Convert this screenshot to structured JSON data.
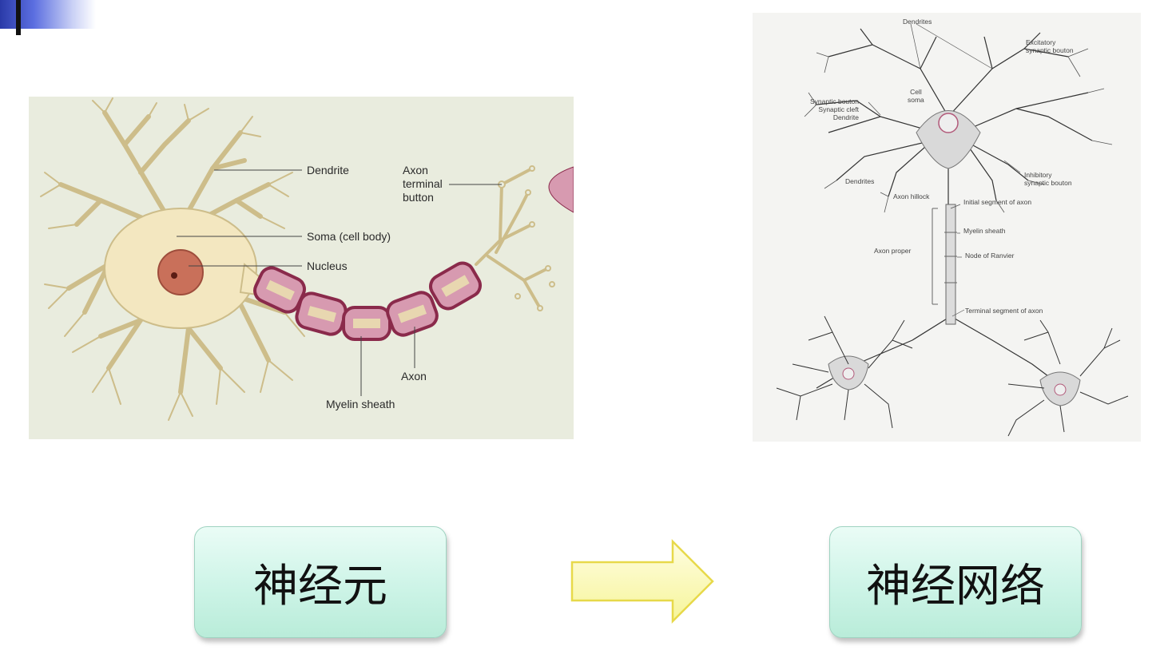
{
  "neuron_diagram": {
    "labels": {
      "dendrite": "Dendrite",
      "axon_terminal": "Axon\nterminal\nbutton",
      "soma": "Soma (cell body)",
      "nucleus": "Nucleus",
      "axon": "Axon",
      "myelin": "Myelin sheath"
    }
  },
  "network_diagram": {
    "labels": {
      "dendrites_top": "Dendrites",
      "excitatory": "Excitatory\nsynaptic bouton",
      "cell_soma": "Cell\nsoma",
      "synaptic_group": "Synaptic bouton\nSynaptic cleft\nDendrite",
      "dendrites_left": "Dendrites",
      "inhibitory": "Inhibitory\nsynaptic bouton",
      "axon_hillock": "Axon hillock",
      "initial_segment": "Initial segment of axon",
      "myelin": "Myelin sheath",
      "axon_proper": "Axon proper",
      "ranvier": "Node of Ranvier",
      "terminal_segment": "Terminal segment of axon"
    }
  },
  "captions": {
    "neuron": "神经元",
    "network": "神经网络"
  },
  "colors": {
    "arrow_fill": "#fbfbb8",
    "arrow_stroke": "#e7d94a",
    "box_fill": "#cdf4e7"
  }
}
